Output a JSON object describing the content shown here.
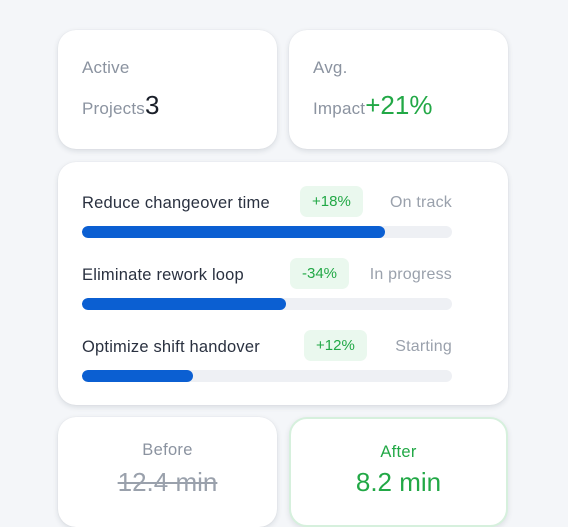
{
  "stats": {
    "active_label_line1": "Active",
    "active_label_line2": "Projects",
    "active_value": "3",
    "impact_label_line1": "Avg.",
    "impact_label_line2": "Impact",
    "impact_value": "+21%"
  },
  "projects": [
    {
      "name": "Reduce changeover time",
      "delta": "+18%",
      "status": "On track",
      "progress": 0.82
    },
    {
      "name": "Eliminate rework loop",
      "delta": "-34%",
      "status": "In progress",
      "progress": 0.55
    },
    {
      "name": "Optimize shift handover",
      "delta": "+12%",
      "status": "Starting",
      "progress": 0.3
    }
  ],
  "comparison": {
    "before_label": "Before",
    "before_value": "12.4 min",
    "after_label": "After",
    "after_value": "8.2 min"
  },
  "colors": {
    "accent_blue": "#0b5fd2",
    "positive_green": "#22a846",
    "positive_bg": "#eaf8ee",
    "muted_text": "#8b93a0"
  }
}
